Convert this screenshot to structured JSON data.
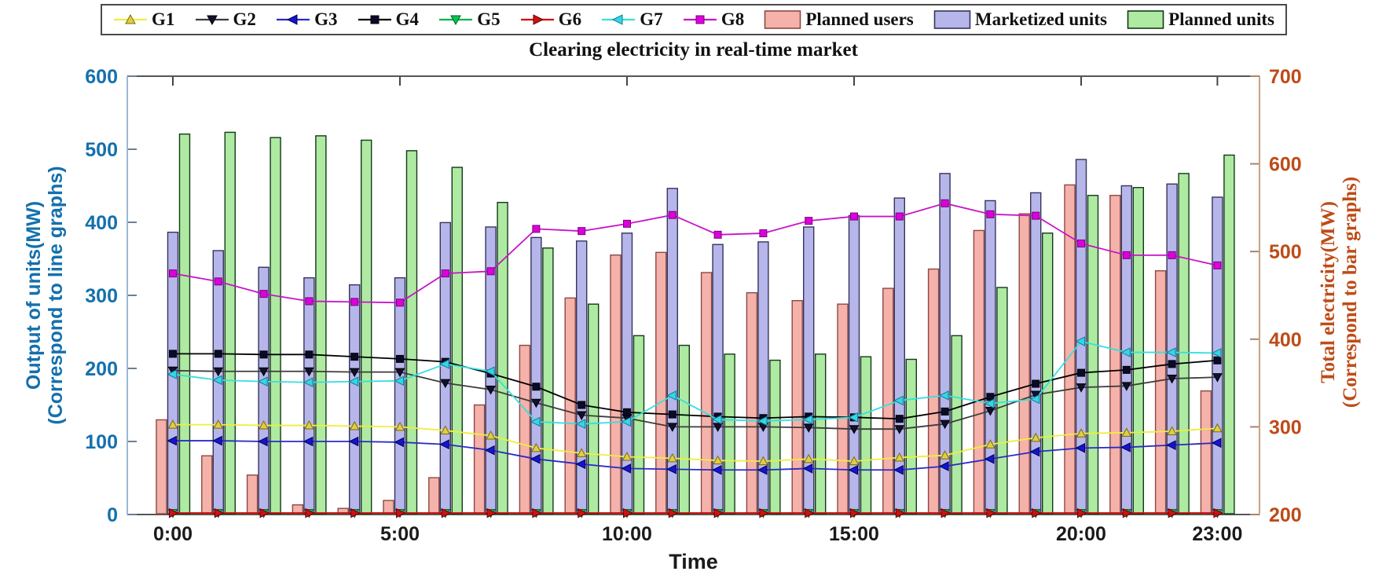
{
  "figure": {
    "title": "Clearing electricity in real-time market",
    "x_axis": {
      "label": "Time",
      "tick_hours": [
        0,
        5,
        10,
        15,
        20,
        23
      ],
      "tick_labels": [
        "0:00",
        "5:00",
        "10:00",
        "15:00",
        "20:00",
        "23:00"
      ]
    },
    "left_axis": {
      "label_line1": "Output of units(MW)",
      "label_line2": "(Correspond to line graphs)",
      "ticks": [
        0,
        100,
        200,
        300,
        400,
        500,
        600
      ],
      "color": "#1470ad"
    },
    "right_axis": {
      "label_line1": "Total electricity(MW)",
      "label_line2": "(Correspond to bar graphs)",
      "ticks": [
        200,
        300,
        400,
        500,
        600,
        700
      ],
      "color": "#be4b17"
    }
  },
  "chart_data": {
    "type": "bar+line (dual axis)",
    "x_categories": [
      "0:00",
      "1:00",
      "2:00",
      "3:00",
      "4:00",
      "5:00",
      "6:00",
      "7:00",
      "8:00",
      "9:00",
      "10:00",
      "11:00",
      "12:00",
      "13:00",
      "14:00",
      "15:00",
      "16:00",
      "17:00",
      "18:00",
      "19:00",
      "20:00",
      "21:00",
      "22:00",
      "23:00"
    ],
    "left_ylim": [
      0,
      600
    ],
    "right_ylim": [
      200,
      700
    ],
    "grid": false,
    "legend_position": "top",
    "bar_series": [
      {
        "name": "Planned users",
        "axis": "right",
        "fill": "#f5b2aa",
        "edge": "#8c4842",
        "values": [
          308,
          267,
          245,
          211,
          207,
          216,
          242,
          325,
          393,
          447,
          496,
          499,
          476,
          453,
          444,
          440,
          458,
          480,
          524,
          543,
          576,
          564,
          478,
          341
        ]
      },
      {
        "name": "Marketized units",
        "axis": "right",
        "fill": "#b7b6ea",
        "edge": "#34345c",
        "values": [
          522,
          501,
          482,
          470,
          462,
          470,
          533,
          528,
          516,
          512,
          521,
          572,
          508,
          511,
          528,
          541,
          561,
          589,
          558,
          567,
          605,
          575,
          577,
          562
        ]
      },
      {
        "name": "Planned units",
        "axis": "right",
        "fill": "#aeeaa2",
        "edge": "#14381a",
        "values": [
          634,
          636,
          630,
          632,
          627,
          615,
          596,
          556,
          504,
          440,
          404,
          393,
          383,
          376,
          383,
          380,
          377,
          404,
          459,
          521,
          564,
          573,
          589,
          610
        ]
      }
    ],
    "line_series": [
      {
        "name": "G1",
        "axis": "left",
        "color": "#f0ee3a",
        "marker": "triangle-up",
        "mfill": "#e0cc49",
        "medge": "#7a6c00",
        "values": [
          123,
          123,
          122,
          122,
          121,
          120,
          115,
          108,
          91,
          84,
          79,
          77,
          74,
          73,
          76,
          73,
          78,
          81,
          96,
          105,
          111,
          112,
          114,
          118
        ]
      },
      {
        "name": "G2",
        "axis": "left",
        "color": "#3c3c3c",
        "marker": "triangle-down",
        "mfill": "#11112e",
        "medge": "#000000",
        "values": [
          197,
          196,
          196,
          196,
          195,
          195,
          180,
          171,
          153,
          136,
          132,
          120,
          120,
          120,
          119,
          117,
          117,
          124,
          142,
          164,
          174,
          176,
          186,
          188
        ]
      },
      {
        "name": "G3",
        "axis": "left",
        "color": "#2a2ac8",
        "marker": "triangle-left",
        "mfill": "#1414d2",
        "medge": "#000050",
        "values": [
          101,
          101,
          100,
          100,
          100,
          99,
          96,
          88,
          76,
          69,
          63,
          62,
          61,
          61,
          63,
          61,
          61,
          66,
          76,
          86,
          91,
          92,
          95,
          98
        ]
      },
      {
        "name": "G4",
        "axis": "left",
        "color": "#000000",
        "marker": "square",
        "mfill": "#0a0a28",
        "medge": "#000000",
        "values": [
          220,
          220,
          219,
          219,
          216,
          213,
          209,
          193,
          175,
          150,
          140,
          137,
          134,
          132,
          134,
          133,
          131,
          141,
          161,
          179,
          194,
          198,
          206,
          211
        ]
      },
      {
        "name": "G5",
        "axis": "left",
        "color": "#00b44b",
        "marker": "triangle-down",
        "mfill": "#00c853",
        "medge": "#005a20",
        "values": [
          2,
          2,
          2,
          2,
          2,
          2,
          2,
          2,
          2,
          2,
          2,
          2,
          2,
          2,
          2,
          2,
          2,
          2,
          2,
          2,
          2,
          2,
          2,
          2
        ]
      },
      {
        "name": "G6",
        "axis": "left",
        "color": "#d40000",
        "marker": "triangle-right",
        "mfill": "#cc1111",
        "medge": "#6a0000",
        "values": [
          2,
          2,
          2,
          2,
          2,
          2,
          2,
          2,
          2,
          2,
          2,
          2,
          2,
          2,
          2,
          2,
          2,
          2,
          2,
          2,
          2,
          2,
          2,
          2
        ]
      },
      {
        "name": "G7",
        "axis": "left",
        "color": "#35dfe0",
        "marker": "triangle-left",
        "mfill": "#35d5e8",
        "medge": "#0b7f8a",
        "values": [
          192,
          184,
          182,
          181,
          182,
          183,
          206,
          196,
          127,
          124,
          127,
          163,
          130,
          128,
          130,
          133,
          156,
          163,
          152,
          158,
          237,
          222,
          222,
          221
        ]
      },
      {
        "name": "G8",
        "axis": "left",
        "color": "#c813c8",
        "marker": "square",
        "mfill": "#dc00dc",
        "medge": "#770077",
        "values": [
          330,
          319,
          302,
          292,
          291,
          290,
          330,
          333,
          391,
          388,
          398,
          410,
          383,
          385,
          402,
          408,
          408,
          426,
          411,
          409,
          371,
          355,
          355,
          341
        ]
      }
    ]
  },
  "legend": {
    "line_labels": [
      "G1",
      "G2",
      "G3",
      "G4",
      "G5",
      "G6",
      "G7",
      "G8"
    ],
    "bar_labels": [
      "Planned users",
      "Marketized units",
      "Planned units"
    ]
  }
}
